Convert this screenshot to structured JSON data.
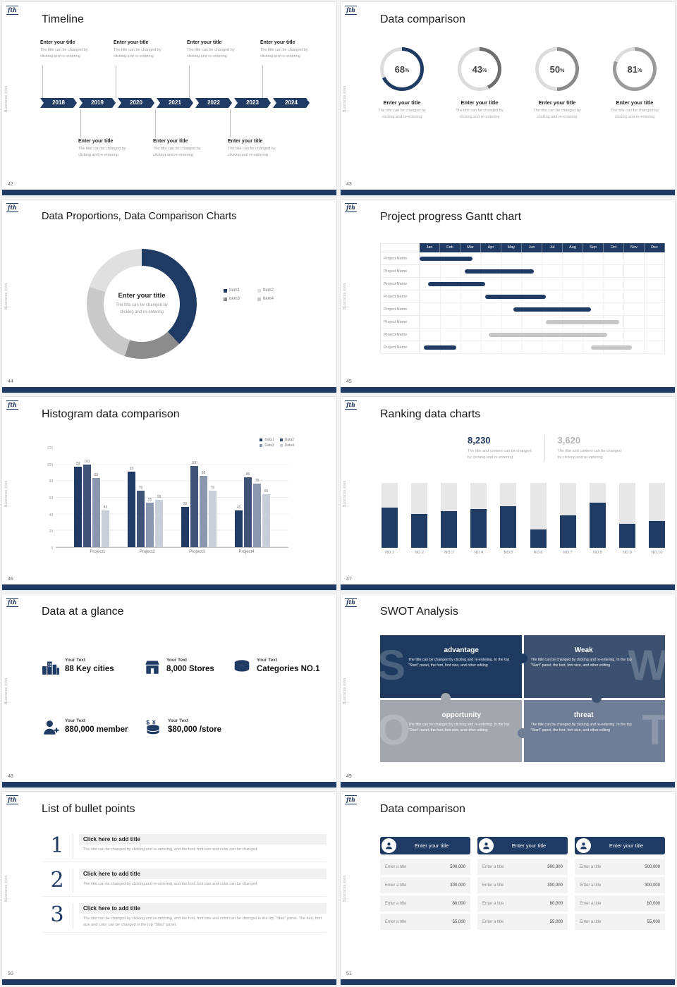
{
  "common": {
    "logo": "fth",
    "side_text": "Business plan",
    "entry_title": "Enter your title",
    "entry_line1": "The title can be changed by",
    "entry_line2": "clicking and re-entering",
    "navy": "#1f3a63"
  },
  "slides": {
    "timeline": {
      "number": "42",
      "title": "Timeline",
      "years": [
        "2018",
        "2019",
        "2020",
        "2021",
        "2022",
        "2023",
        "2024"
      ]
    },
    "rings": {
      "number": "43",
      "title": "Data comparison",
      "labels": [
        "68",
        "43",
        "50",
        "81"
      ],
      "pct": "%",
      "chart_data": {
        "type": "donut-progress",
        "values": [
          68,
          43,
          50,
          81
        ],
        "colors": [
          "#1f3a63",
          "#6e6e6e",
          "#8a8a8a",
          "#9a9a9a"
        ],
        "track": "#dcdcdc"
      }
    },
    "donut": {
      "number": "44",
      "title": "Data Proportions, Data Comparison Charts",
      "legend": [
        {
          "label": "Item1",
          "color": "#1f3a63"
        },
        {
          "label": "Item2",
          "color": "#e0e0e0"
        },
        {
          "label": "Item3",
          "color": "#8c8c8c"
        },
        {
          "label": "Item4",
          "color": "#c9c9c9"
        }
      ],
      "chart_data": {
        "type": "pie",
        "segments": [
          {
            "label": "Item1",
            "pct": 38,
            "color": "#1f3a63"
          },
          {
            "label": "Item3",
            "pct": 17,
            "color": "#8c8c8c"
          },
          {
            "label": "Item4",
            "pct": 25,
            "color": "#c9c9c9"
          },
          {
            "label": "Item2",
            "pct": 20,
            "color": "#e0e0e0"
          }
        ]
      }
    },
    "gantt": {
      "number": "45",
      "title": "Project progress Gantt chart",
      "row_label": "Project Name",
      "chart_data": {
        "type": "gantt",
        "months": [
          "Jan",
          "Feb",
          "Mar",
          "Apr",
          "May",
          "Jun",
          "Jul",
          "Aug",
          "Sep",
          "Oct",
          "Nov",
          "Dec"
        ],
        "rows": 8,
        "bars": [
          {
            "row": 0,
            "start": 0.0,
            "end": 2.6,
            "color": "#1f3a63"
          },
          {
            "row": 1,
            "start": 2.2,
            "end": 5.6,
            "color": "#1f3a63"
          },
          {
            "row": 2,
            "start": 0.4,
            "end": 3.2,
            "color": "#1f3a63"
          },
          {
            "row": 3,
            "start": 3.2,
            "end": 6.2,
            "color": "#1f3a63"
          },
          {
            "row": 4,
            "start": 4.6,
            "end": 8.4,
            "color": "#1f3a63"
          },
          {
            "row": 5,
            "start": 6.2,
            "end": 9.8,
            "color": "#c6c6c6"
          },
          {
            "row": 6,
            "start": 3.4,
            "end": 9.2,
            "color": "#c6c6c6"
          },
          {
            "row": 7,
            "start": 0.2,
            "end": 1.8,
            "color": "#1f3a63"
          },
          {
            "row": 7,
            "start": 8.4,
            "end": 10.4,
            "color": "#c6c6c6"
          }
        ]
      }
    },
    "histogram": {
      "number": "46",
      "title": "Histogram data comparison",
      "chart_data": {
        "type": "bar",
        "categories": [
          "Project1",
          "Project2",
          "Project3",
          "Project4"
        ],
        "series": [
          {
            "name": "Data1",
            "color": "#1f3a63",
            "values": [
              99,
              93,
              50,
              45
            ]
          },
          {
            "name": "Data2",
            "color": "#3f5377",
            "values": [
              102,
              70,
              100,
              86
            ]
          },
          {
            "name": "Data3",
            "color": "#8a97ad",
            "values": [
              85,
              55,
              88,
              78
            ]
          },
          {
            "name": "Data4",
            "color": "#c9cfd8",
            "values": [
              45,
              58,
              70,
              65
            ]
          }
        ],
        "ylim": [
          0,
          120
        ],
        "yticks": [
          0,
          20,
          40,
          60,
          80,
          100,
          120
        ]
      }
    },
    "ranking": {
      "number": "47",
      "title": "Ranking data charts",
      "stat1": {
        "value": "8,230",
        "line1": "The title and content can be changed",
        "line2": "by clicking and re-entering"
      },
      "stat2": {
        "value": "3,620",
        "line1": "The title and content can be changed",
        "line2": "by clicking and re-entering"
      },
      "chart_data": {
        "type": "bar",
        "categories": [
          "NO.1",
          "NO.2",
          "NO.3",
          "NO.4",
          "NO.5",
          "NO.6",
          "NO.7",
          "NO.8",
          "NO.9",
          "NO.10"
        ],
        "values": [
          62,
          52,
          56,
          60,
          64,
          28,
          50,
          70,
          37,
          41
        ],
        "ylim": [
          0,
          100
        ],
        "fill": "#1f3a63",
        "track": "#e7e7e7"
      }
    },
    "glance": {
      "number": "48",
      "title": "Data at a glance",
      "label": "Your Text",
      "stats": [
        {
          "icon": "city-icon",
          "value": "88 Key cities"
        },
        {
          "icon": "store-icon",
          "value": "8,000 Stores"
        },
        {
          "icon": "categories-icon",
          "value": "Categories NO.1"
        },
        {
          "icon": "member-icon",
          "value": "880,000 member"
        },
        {
          "icon": "money-icon",
          "value": "$80,000 /store"
        }
      ]
    },
    "swot": {
      "number": "49",
      "title": "SWOT Analysis",
      "desc": "The title can be changed by clicking and re-entering. In the top \"Start\" panel, the font, font size, and other editing",
      "quadrants": [
        {
          "letter": "S",
          "heading": "advantage",
          "color": "#1e3a5f"
        },
        {
          "letter": "W",
          "heading": "Weak",
          "color": "#3c5170"
        },
        {
          "letter": "O",
          "heading": "opportunity",
          "color": "#a2a6ad"
        },
        {
          "letter": "T",
          "heading": "threat",
          "color": "#6f7d96"
        }
      ]
    },
    "bullets": {
      "number": "50",
      "title": "List of bullet points",
      "item_title": "Click here to add title",
      "items": [
        {
          "num": "1",
          "desc": "The title can be changed by clicking and re-entering, and the font, font size and color can be changed"
        },
        {
          "num": "2",
          "desc": "The title can be changed by clicking and re-entering, and the font, font size and color can be changed"
        },
        {
          "num": "3",
          "desc": "The title can be changed by clicking and re-entering, and the font, font size and color can be changed in the top \"Start\" panel. The font, font size and color can be changed in the top \"Start\" panel."
        }
      ]
    },
    "cards": {
      "number": "51",
      "title": "Data comparison",
      "card_header": "Enter your title",
      "row_label": "Enter a title",
      "values": [
        "500,000",
        "300,000",
        "80,000",
        "55,000"
      ]
    }
  }
}
